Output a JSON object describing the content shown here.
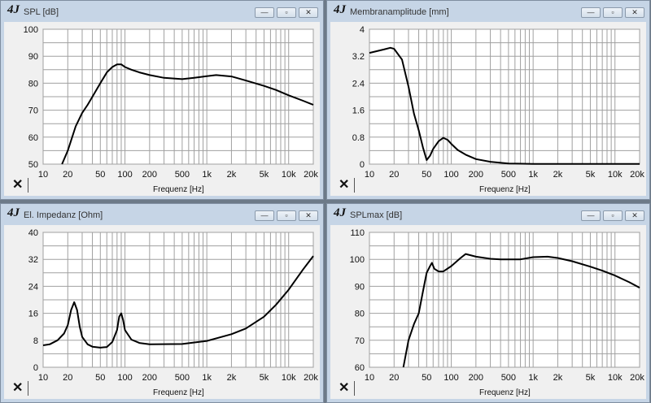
{
  "app": {
    "logo": "4J",
    "minimize": "—",
    "restore": "▫",
    "close": "✕",
    "x_axis_label": "Frequenz [Hz]"
  },
  "colors": {
    "grid": "#a0a0a0",
    "curve": "#000000",
    "plot_bg": "#ffffff"
  },
  "panels": [
    {
      "title": "SPL [dB]",
      "chart_data": {
        "type": "line",
        "title": "SPL [dB]",
        "xlabel": "Frequenz [Hz]",
        "xscale": "log",
        "xlim": [
          10,
          20000
        ],
        "ylim": [
          50,
          100
        ],
        "yticks": [
          50,
          60,
          70,
          80,
          90,
          100
        ],
        "ygrid_step": 5,
        "xtick_labels": [
          [
            10,
            "10"
          ],
          [
            20,
            "20"
          ],
          [
            50,
            "50"
          ],
          [
            100,
            "100"
          ],
          [
            200,
            "200"
          ],
          [
            500,
            "500"
          ],
          [
            1000,
            "1k"
          ],
          [
            2000,
            "2k"
          ],
          [
            5000,
            "5k"
          ],
          [
            10000,
            "10k"
          ],
          [
            20000,
            "20k"
          ]
        ],
        "points": [
          [
            17,
            50
          ],
          [
            20,
            55
          ],
          [
            25,
            64
          ],
          [
            30,
            69
          ],
          [
            35,
            72
          ],
          [
            40,
            75
          ],
          [
            50,
            80
          ],
          [
            60,
            84
          ],
          [
            70,
            86
          ],
          [
            80,
            87
          ],
          [
            90,
            87
          ],
          [
            100,
            86
          ],
          [
            120,
            85
          ],
          [
            150,
            84
          ],
          [
            200,
            83
          ],
          [
            300,
            82
          ],
          [
            500,
            81.5
          ],
          [
            700,
            82
          ],
          [
            1000,
            82.6
          ],
          [
            1300,
            83
          ],
          [
            2000,
            82.5
          ],
          [
            3000,
            81
          ],
          [
            5000,
            79
          ],
          [
            7000,
            77.5
          ],
          [
            10000,
            75.5
          ],
          [
            15000,
            73.5
          ],
          [
            20000,
            72
          ]
        ]
      }
    },
    {
      "title": "Membranamplitude [mm]",
      "chart_data": {
        "type": "line",
        "title": "Membranamplitude [mm]",
        "xlabel": "Frequenz [Hz]",
        "xscale": "log",
        "xlim": [
          10,
          20000
        ],
        "ylim": [
          0,
          4
        ],
        "yticks": [
          0,
          0.8,
          1.6,
          2.4,
          3.2,
          4
        ],
        "ygrid_step": 0.4,
        "xtick_labels": [
          [
            10,
            "10"
          ],
          [
            20,
            "20"
          ],
          [
            50,
            "50"
          ],
          [
            100,
            "100"
          ],
          [
            200,
            "200"
          ],
          [
            500,
            "500"
          ],
          [
            1000,
            "1k"
          ],
          [
            2000,
            "2k"
          ],
          [
            5000,
            "5k"
          ],
          [
            10000,
            "10k"
          ],
          [
            20000,
            "20k"
          ]
        ],
        "points": [
          [
            10,
            3.3
          ],
          [
            15,
            3.4
          ],
          [
            18,
            3.45
          ],
          [
            20,
            3.42
          ],
          [
            25,
            3.1
          ],
          [
            30,
            2.3
          ],
          [
            35,
            1.5
          ],
          [
            40,
            1.0
          ],
          [
            45,
            0.5
          ],
          [
            50,
            0.12
          ],
          [
            55,
            0.25
          ],
          [
            60,
            0.45
          ],
          [
            70,
            0.68
          ],
          [
            80,
            0.78
          ],
          [
            90,
            0.72
          ],
          [
            100,
            0.6
          ],
          [
            120,
            0.42
          ],
          [
            150,
            0.28
          ],
          [
            200,
            0.15
          ],
          [
            300,
            0.07
          ],
          [
            500,
            0.02
          ],
          [
            1000,
            0.005
          ],
          [
            20000,
            0.005
          ]
        ]
      }
    },
    {
      "title": "El. Impedanz [Ohm]",
      "chart_data": {
        "type": "line",
        "title": "El. Impedanz [Ohm]",
        "xlabel": "Frequenz [Hz]",
        "xscale": "log",
        "xlim": [
          10,
          20000
        ],
        "ylim": [
          0,
          40
        ],
        "yticks": [
          0,
          8,
          16,
          24,
          32,
          40
        ],
        "ygrid_step": 4,
        "xtick_labels": [
          [
            10,
            "10"
          ],
          [
            20,
            "20"
          ],
          [
            50,
            "50"
          ],
          [
            100,
            "100"
          ],
          [
            200,
            "200"
          ],
          [
            500,
            "500"
          ],
          [
            1000,
            "1k"
          ],
          [
            2000,
            "2k"
          ],
          [
            5000,
            "5k"
          ],
          [
            10000,
            "10k"
          ],
          [
            20000,
            "20k"
          ]
        ],
        "points": [
          [
            10,
            6.5
          ],
          [
            12,
            6.8
          ],
          [
            15,
            8
          ],
          [
            18,
            10
          ],
          [
            20,
            12.5
          ],
          [
            22,
            17
          ],
          [
            24,
            19.3
          ],
          [
            26,
            17
          ],
          [
            28,
            12
          ],
          [
            30,
            9
          ],
          [
            35,
            6.8
          ],
          [
            40,
            6.1
          ],
          [
            50,
            5.8
          ],
          [
            60,
            6
          ],
          [
            70,
            7.5
          ],
          [
            80,
            11
          ],
          [
            85,
            15
          ],
          [
            90,
            16
          ],
          [
            95,
            14
          ],
          [
            100,
            11
          ],
          [
            120,
            8.2
          ],
          [
            150,
            7.2
          ],
          [
            200,
            6.8
          ],
          [
            500,
            6.9
          ],
          [
            1000,
            7.8
          ],
          [
            2000,
            9.8
          ],
          [
            3000,
            11.5
          ],
          [
            5000,
            15
          ],
          [
            7000,
            18.5
          ],
          [
            10000,
            23
          ],
          [
            15000,
            29
          ],
          [
            20000,
            33
          ]
        ]
      }
    },
    {
      "title": "SPLmax [dB]",
      "chart_data": {
        "type": "line",
        "title": "SPLmax [dB]",
        "xlabel": "Frequenz [Hz]",
        "xscale": "log",
        "xlim": [
          10,
          20000
        ],
        "ylim": [
          60,
          110
        ],
        "yticks": [
          60,
          70,
          80,
          90,
          100,
          110
        ],
        "ygrid_step": 5,
        "xtick_labels": [
          [
            10,
            "10"
          ],
          [
            20,
            "20"
          ],
          [
            50,
            "50"
          ],
          [
            100,
            "100"
          ],
          [
            200,
            "200"
          ],
          [
            500,
            "500"
          ],
          [
            1000,
            "1k"
          ],
          [
            2000,
            "2k"
          ],
          [
            5000,
            "5k"
          ],
          [
            10000,
            "10k"
          ],
          [
            20000,
            "20k"
          ]
        ],
        "points": [
          [
            26,
            60
          ],
          [
            30,
            70
          ],
          [
            35,
            76
          ],
          [
            40,
            80
          ],
          [
            45,
            88
          ],
          [
            50,
            95
          ],
          [
            55,
            97.5
          ],
          [
            58,
            98.7
          ],
          [
            62,
            96.5
          ],
          [
            70,
            95.5
          ],
          [
            80,
            95.5
          ],
          [
            100,
            97.5
          ],
          [
            130,
            100.5
          ],
          [
            150,
            102
          ],
          [
            200,
            101
          ],
          [
            300,
            100.2
          ],
          [
            400,
            100
          ],
          [
            700,
            100
          ],
          [
            1000,
            100.8
          ],
          [
            1500,
            101
          ],
          [
            2000,
            100.5
          ],
          [
            3000,
            99.3
          ],
          [
            5000,
            97.3
          ],
          [
            7000,
            95.8
          ],
          [
            10000,
            94
          ],
          [
            15000,
            91.5
          ],
          [
            20000,
            89.5
          ]
        ]
      }
    }
  ]
}
